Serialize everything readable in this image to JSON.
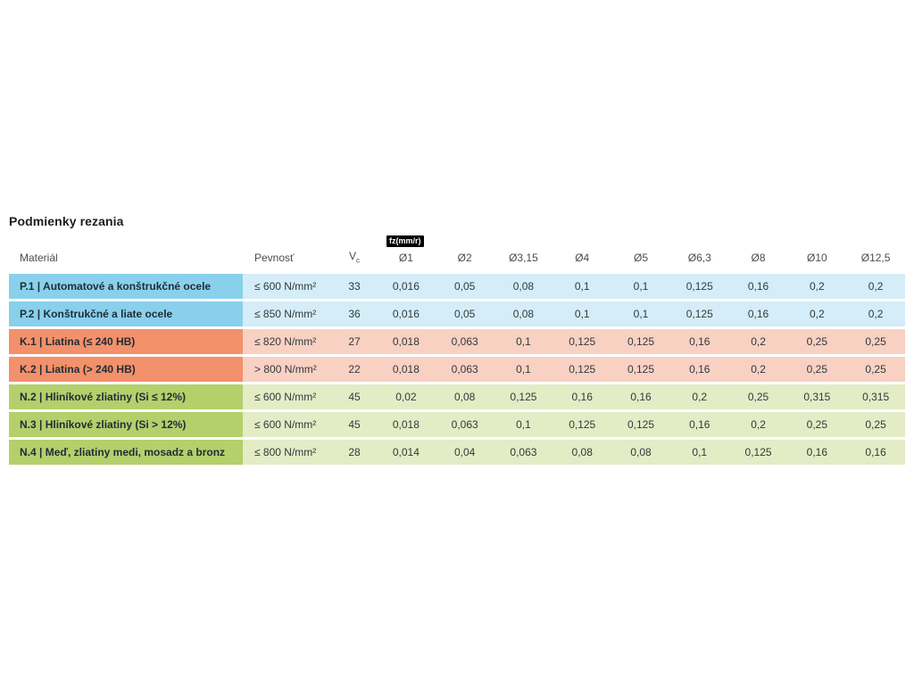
{
  "page": {
    "title": "Podmienky rezania"
  },
  "table": {
    "badge": "fz(mm/r)",
    "columns": [
      {
        "label": "Materiál"
      },
      {
        "label": "Pevnosť"
      },
      {
        "label": "V",
        "sub": "c"
      },
      {
        "label": "Ø1"
      },
      {
        "label": "Ø2"
      },
      {
        "label": "Ø3,15"
      },
      {
        "label": "Ø4"
      },
      {
        "label": "Ø5"
      },
      {
        "label": "Ø6,3"
      },
      {
        "label": "Ø8"
      },
      {
        "label": "Ø10"
      },
      {
        "label": "Ø12,5"
      }
    ],
    "rows": [
      {
        "group": "P",
        "material": "P.1 | Automatové a konštrukčné ocele",
        "pevnost": "≤ 600 N/mm²",
        "vc": "33",
        "fz": [
          "0,016",
          "0,05",
          "0,08",
          "0,1",
          "0,1",
          "0,125",
          "0,16",
          "0,2",
          "0,2"
        ]
      },
      {
        "group": "P",
        "material": "P.2 | Konštrukčné a liate ocele",
        "pevnost": "≤ 850 N/mm²",
        "vc": "36",
        "fz": [
          "0,016",
          "0,05",
          "0,08",
          "0,1",
          "0,1",
          "0,125",
          "0,16",
          "0,2",
          "0,2"
        ]
      },
      {
        "group": "K",
        "material": "K.1 | Liatina (≤ 240 HB)",
        "pevnost": "≤ 820 N/mm²",
        "vc": "27",
        "fz": [
          "0,018",
          "0,063",
          "0,1",
          "0,125",
          "0,125",
          "0,16",
          "0,2",
          "0,25",
          "0,25"
        ]
      },
      {
        "group": "K",
        "material": "K.2 | Liatina (> 240 HB)",
        "pevnost": "> 800 N/mm²",
        "vc": "22",
        "fz": [
          "0,018",
          "0,063",
          "0,1",
          "0,125",
          "0,125",
          "0,16",
          "0,2",
          "0,25",
          "0,25"
        ]
      },
      {
        "group": "N",
        "material": "N.2 | Hliníkové zliatiny (Si ≤ 12%)",
        "pevnost": "≤ 600 N/mm²",
        "vc": "45",
        "fz": [
          "0,02",
          "0,08",
          "0,125",
          "0,16",
          "0,16",
          "0,2",
          "0,25",
          "0,315",
          "0,315"
        ]
      },
      {
        "group": "N",
        "material": "N.3 | Hliníkové zliatiny (Si > 12%)",
        "pevnost": "≤ 600 N/mm²",
        "vc": "45",
        "fz": [
          "0,018",
          "0,063",
          "0,1",
          "0,125",
          "0,125",
          "0,16",
          "0,2",
          "0,25",
          "0,25"
        ]
      },
      {
        "group": "N",
        "material": "N.4 | Meď, zliatiny medi, mosadz a bronz",
        "pevnost": "≤ 800 N/mm²",
        "vc": "28",
        "fz": [
          "0,014",
          "0,04",
          "0,063",
          "0,08",
          "0,08",
          "0,1",
          "0,125",
          "0,16",
          "0,16"
        ]
      }
    ],
    "group_colors": {
      "P": {
        "label_bg": "#89D0EC",
        "row_bg": "#D4EDF8"
      },
      "K": {
        "label_bg": "#F2916B",
        "row_bg": "#F8D1C3"
      },
      "N": {
        "label_bg": "#B3D06B",
        "row_bg": "#E3ECC5"
      }
    }
  }
}
